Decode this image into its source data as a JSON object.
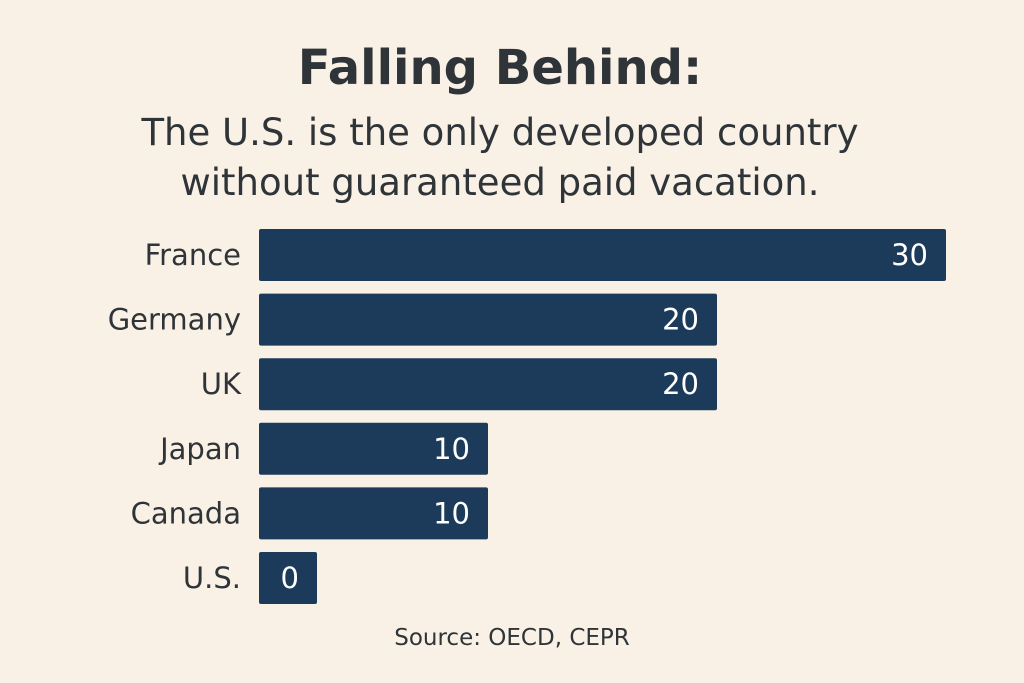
{
  "title": "Falling Behind:",
  "subtitle_lines": [
    "The U.S. is the only developed country",
    "without guaranteed paid vacation."
  ],
  "source": "Source: OECD, CEPR",
  "colors": {
    "background": "#faf1e6",
    "bar": "#1c3b5a",
    "text": "#2f3439",
    "bar_label": "#ffffff"
  },
  "chart_data": {
    "type": "bar",
    "orientation": "horizontal",
    "categories": [
      "France",
      "Germany",
      "UK",
      "Japan",
      "Canada",
      "U.S."
    ],
    "values": [
      30,
      20,
      20,
      10,
      10,
      0
    ],
    "data_labels": [
      "30",
      "20",
      "20",
      "10",
      "10",
      "0"
    ],
    "title": "Falling Behind:",
    "subtitle": "The U.S. is the only developed country without guaranteed paid vacation.",
    "xlabel": "",
    "ylabel": "",
    "grid": false,
    "legend": "none"
  }
}
